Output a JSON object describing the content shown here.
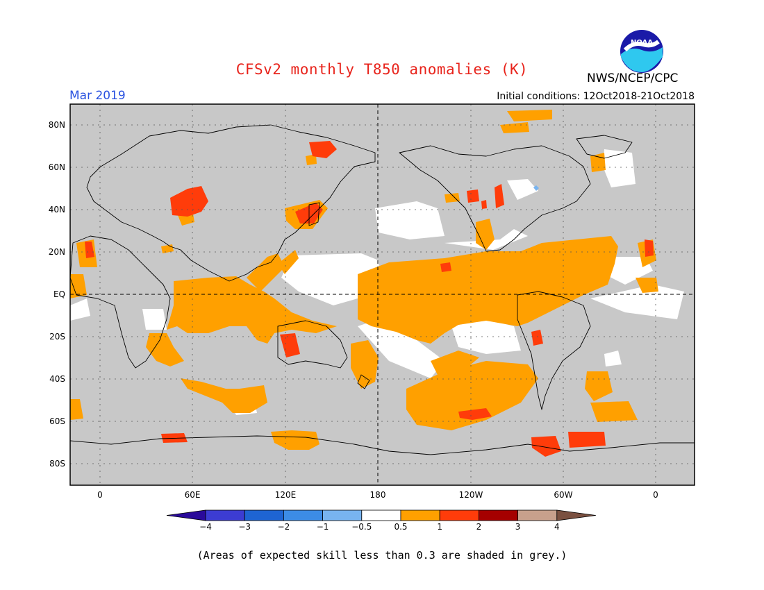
{
  "title": "CFSv2 monthly T850 anomalies (K)",
  "agency": "NWS/NCEP/CPC",
  "logo_text": "NOAA",
  "period": "Mar 2019",
  "initial_conditions": "Initial conditions: 12Oct2018-21Oct2018",
  "footer": "(Areas of expected skill less than 0.3 are shaded in grey.)",
  "colors": {
    "skill_grey": "#c8c8c8",
    "white_band": "#ffffff",
    "c_0p5_1": "#ffa000",
    "c_1_2": "#ff3c0a",
    "c_2_3": "#a50000",
    "c_3_4": "#c8a08c",
    "c_gt4": "#7a5040",
    "c_m0p5_m1": "#78b4f0",
    "c_m1_m2": "#3c8ce6",
    "c_m2_m3": "#1e64d2",
    "c_m3_m4": "#3c3cd2",
    "c_lt_m4": "#2a0a9a"
  },
  "lat_labels": [
    "80N",
    "60N",
    "40N",
    "20N",
    "EQ",
    "20S",
    "40S",
    "60S",
    "80S"
  ],
  "lon_labels": [
    "0",
    "60E",
    "120E",
    "180",
    "120W",
    "60W",
    "0"
  ],
  "colorbar": {
    "labels": [
      "−4",
      "−3",
      "−2",
      "−1",
      "−0.5",
      "0.5",
      "1",
      "2",
      "3",
      "4"
    ],
    "colors": [
      "#2a0a9a",
      "#3c3cd2",
      "#1e64d2",
      "#3c8ce6",
      "#78b4f0",
      "#ffffff",
      "#ffa000",
      "#ff3c0a",
      "#a50000",
      "#c8a08c",
      "#7a5040"
    ]
  }
}
